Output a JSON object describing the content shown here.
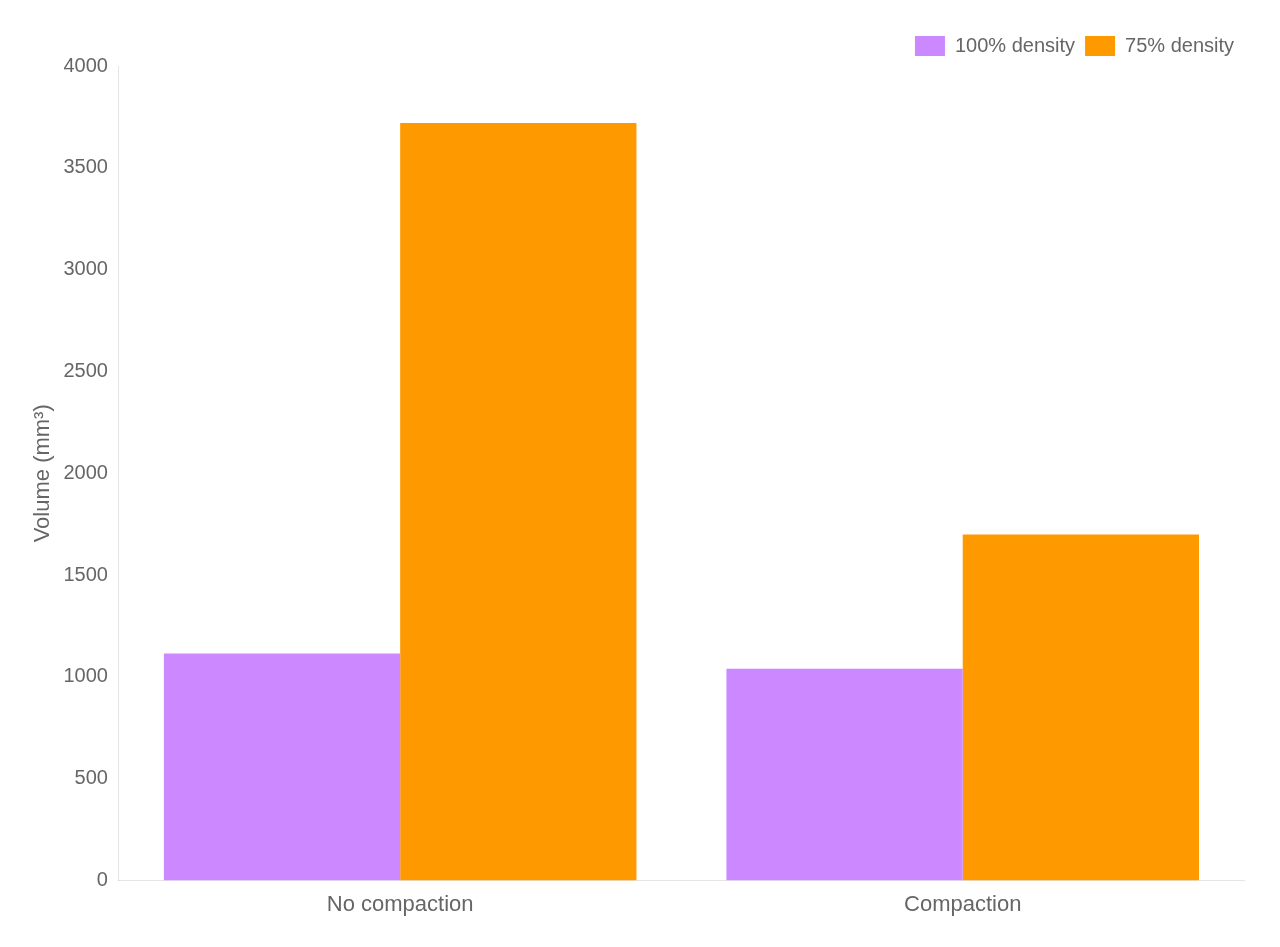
{
  "chart_data": {
    "type": "bar",
    "categories": [
      "No compaction",
      "Compaction"
    ],
    "series": [
      {
        "name": "100% density",
        "color": "#cc88ff",
        "values": [
          1115,
          1040
        ]
      },
      {
        "name": "75% density",
        "color": "#ff9900",
        "values": [
          3720,
          1700
        ]
      }
    ],
    "ylabel": "Volume (mm³)",
    "ylim": [
      0,
      4000
    ],
    "yticks": [
      0,
      500,
      1000,
      1500,
      2000,
      2500,
      3000,
      3500,
      4000
    ],
    "grid": false,
    "legend": "upper right"
  }
}
